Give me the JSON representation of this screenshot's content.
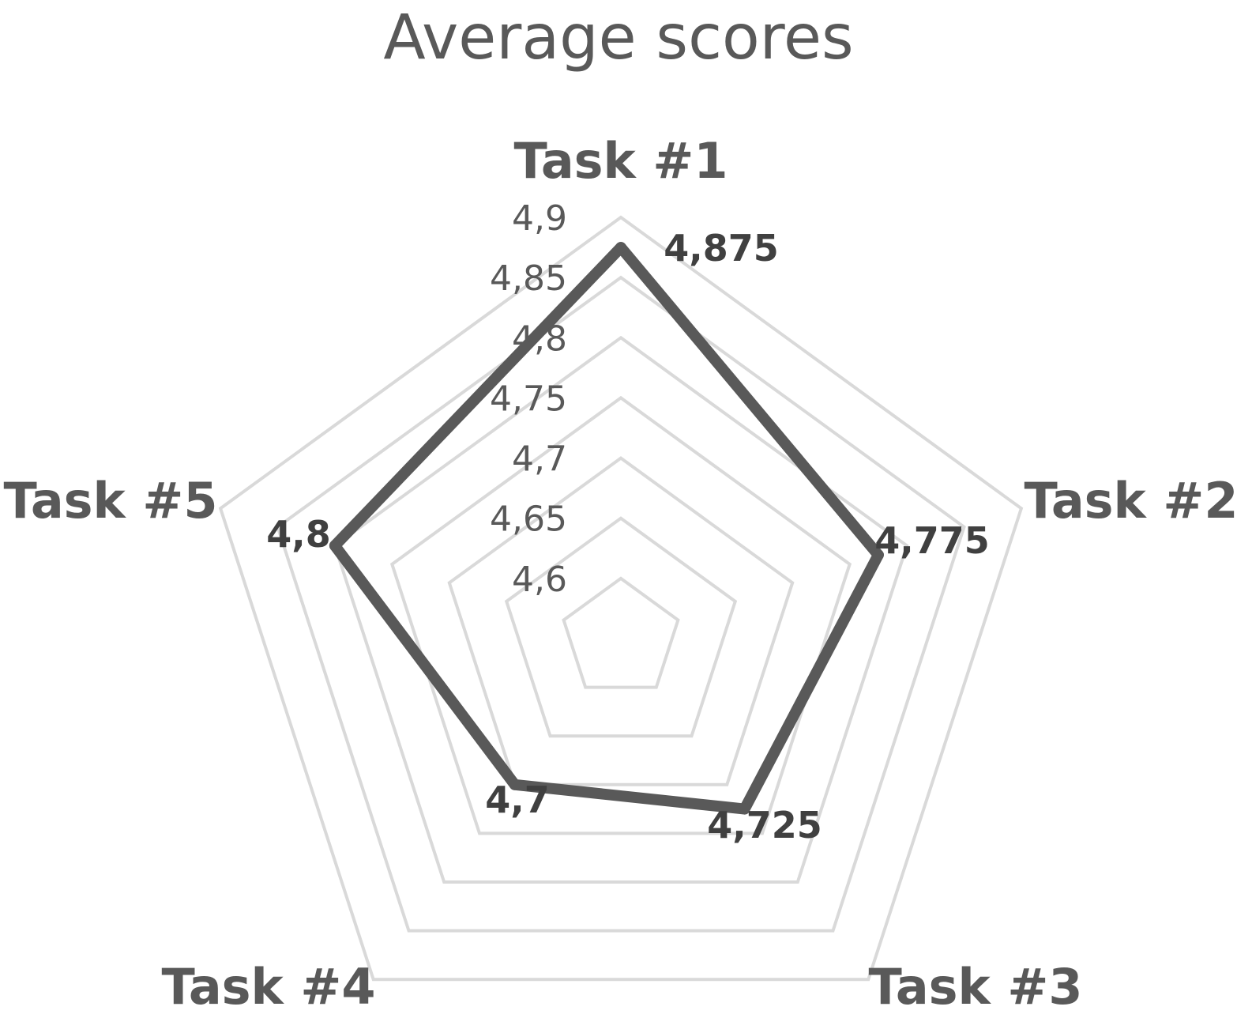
{
  "chart_data": {
    "type": "radar",
    "title": "Average scores",
    "categories": [
      "Task #1",
      "Task #2",
      "Task #3",
      "Task #4",
      "Task #5"
    ],
    "series": [
      {
        "values": [
          4.875,
          4.775,
          4.725,
          4.7,
          4.8
        ],
        "data_labels": [
          "4,875",
          "4,775",
          "4,725",
          "4,7",
          "4,8"
        ],
        "color": "#595959"
      }
    ],
    "axis": {
      "min": 4.55,
      "max": 4.9,
      "ticks": [
        4.6,
        4.65,
        4.7,
        4.75,
        4.8,
        4.85,
        4.9
      ],
      "tick_labels": [
        "4,6",
        "4,65",
        "4,7",
        "4,75",
        "4,8",
        "4,85",
        "4,9"
      ]
    },
    "grid": true,
    "grid_color": "#d9d9d9",
    "legend": "none"
  }
}
